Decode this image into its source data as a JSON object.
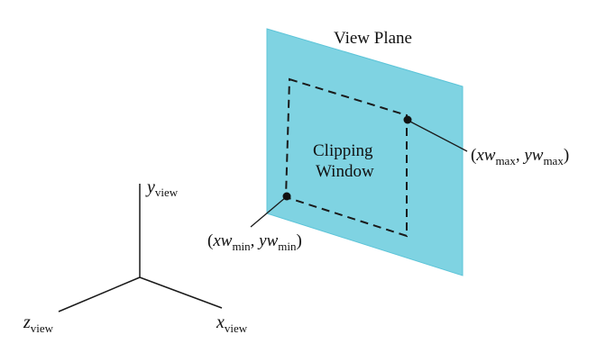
{
  "view_plane": {
    "title": "View Plane",
    "fill_color": "#7fd3e2"
  },
  "clipping_window": {
    "line1": "Clipping",
    "line2": "Window",
    "min_point": {
      "open": "(",
      "x_var": "xw",
      "x_sub": "min",
      "sep": ", ",
      "y_var": "yw",
      "y_sub": "min",
      "close": ")"
    },
    "max_point": {
      "open": "(",
      "x_var": "xw",
      "x_sub": "max",
      "sep": ", ",
      "y_var": "yw",
      "y_sub": "max",
      "close": ")"
    }
  },
  "axes": {
    "y": {
      "var": "y",
      "sub": "view"
    },
    "z": {
      "var": "z",
      "sub": "view"
    },
    "x": {
      "var": "x",
      "sub": "view"
    }
  },
  "colors": {
    "line": "#1a1a1a",
    "plane_edge": "#5cc4d8"
  }
}
